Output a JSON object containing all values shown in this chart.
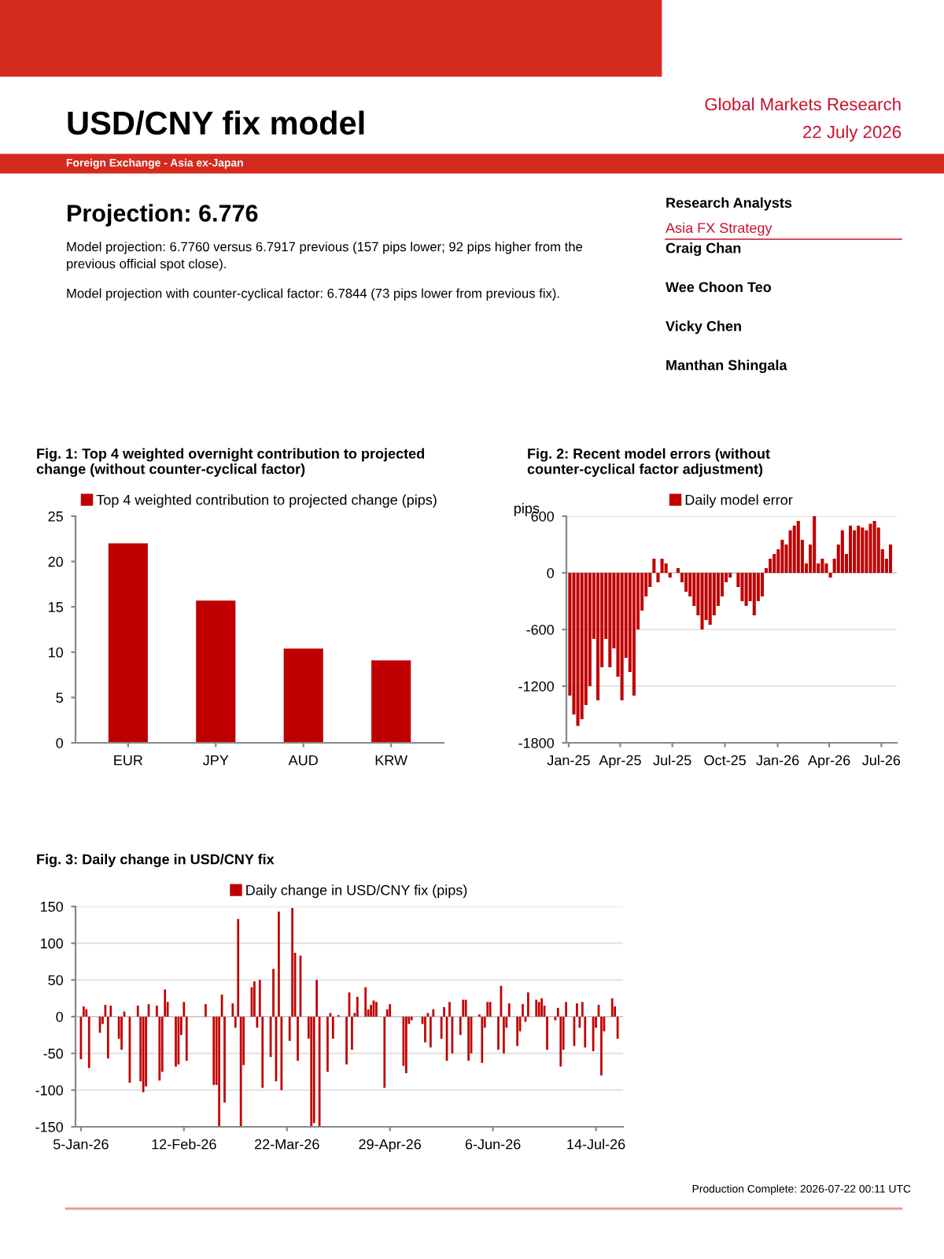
{
  "chart_data": [
    {
      "type": "other",
      "title": "USD/CNY fix model",
      "subtitle": "Foreign Exchange - Asia ex-Japan",
      "color": "#d52b1e",
      "annotations": [
        "Global Markets Research",
        "22 July 2026",
        "Projection: 6.776",
        "Model projection: 6.7760 versus 6.7917 previous (157 pips lower; 92 pips higher from the previous official spot close).",
        "Model projection with counter-cyclical factor: 6.7844 (73 pips lower from previous fix).",
        "Research Analysts",
        "Asia FX Strategy",
        "Craig Chan",
        "Wee Choon Teo",
        "Vicky Chen",
        "Manthan Shingala",
        "Production Complete: 2026-07-22 00:11 UTC"
      ]
    },
    {
      "type": "bar",
      "title": "Fig. 1: Top 4 weighted overnight contribution to projected change (without counter-cyclical factor)",
      "categories": [
        "EUR",
        "JPY",
        "AUD",
        "KRW"
      ],
      "series": [
        {
          "name": "Top 4 weighted contribution to projected change (pips)",
          "color": "#c00000",
          "values": [
            22,
            15.7,
            10.4,
            9.1
          ]
        }
      ],
      "ylim": [
        0,
        25
      ],
      "yticks": [
        0,
        5,
        10,
        15,
        20,
        25
      ],
      "grid": false,
      "legend": "top"
    },
    {
      "type": "bar",
      "title": "Fig. 2: Recent model errors (without counter-cyclical factor adjustment)",
      "ylabel": "pips",
      "x": [
        "2025-01-03",
        "2025-01-10",
        "2025-01-17",
        "2025-01-24",
        "2025-01-31",
        "2025-02-07",
        "2025-02-14",
        "2025-02-21",
        "2025-02-28",
        "2025-03-07",
        "2025-03-14",
        "2025-03-21",
        "2025-03-28",
        "2025-04-04",
        "2025-04-11",
        "2025-04-18",
        "2025-04-25",
        "2025-05-02",
        "2025-05-09",
        "2025-05-16",
        "2025-05-23",
        "2025-05-30",
        "2025-06-06",
        "2025-06-13",
        "2025-06-20",
        "2025-06-27",
        "2025-07-04",
        "2025-07-11",
        "2025-07-18",
        "2025-07-25",
        "2025-08-01",
        "2025-08-08",
        "2025-08-15",
        "2025-08-22",
        "2025-08-29",
        "2025-09-05",
        "2025-09-12",
        "2025-09-19",
        "2025-09-26",
        "2025-10-03",
        "2025-10-10",
        "2025-10-17",
        "2025-10-24",
        "2025-10-31",
        "2025-11-07",
        "2025-11-14",
        "2025-11-21",
        "2025-11-28",
        "2025-12-05",
        "2025-12-12",
        "2025-12-19",
        "2025-12-26",
        "2026-01-02",
        "2026-01-09",
        "2026-01-16",
        "2026-01-23",
        "2026-01-30",
        "2026-02-06",
        "2026-02-13",
        "2026-02-20",
        "2026-02-27",
        "2026-03-06",
        "2026-03-13",
        "2026-03-20",
        "2026-03-27",
        "2026-04-03",
        "2026-04-10",
        "2026-04-17",
        "2026-04-24",
        "2026-05-01",
        "2026-05-08",
        "2026-05-15",
        "2026-05-22",
        "2026-05-29",
        "2026-06-05",
        "2026-06-12",
        "2026-06-19",
        "2026-06-26",
        "2026-07-03",
        "2026-07-10",
        "2026-07-17"
      ],
      "series": [
        {
          "name": "Daily model error",
          "color": "#c00000",
          "values": [
            -1300,
            -1500,
            -1620,
            -1550,
            -1400,
            -1200,
            -700,
            -1350,
            -1000,
            -700,
            -1000,
            -800,
            -1100,
            -1350,
            -900,
            -1050,
            -1300,
            -600,
            -400,
            -250,
            -150,
            150,
            -100,
            150,
            100,
            -50,
            0,
            50,
            -100,
            -200,
            -250,
            -350,
            -450,
            -600,
            -500,
            -550,
            -450,
            -350,
            -250,
            -100,
            -50,
            0,
            -150,
            -300,
            -350,
            -300,
            -450,
            -300,
            -250,
            50,
            150,
            200,
            250,
            350,
            300,
            450,
            500,
            550,
            350,
            100,
            300,
            600,
            100,
            150,
            100,
            -50,
            150,
            300,
            450,
            200,
            500,
            450,
            500,
            480,
            450,
            520,
            550,
            480,
            250,
            150,
            300
          ]
        }
      ],
      "xlim": [
        "2024-12-28",
        "2026-07-28"
      ],
      "xticks": [
        {
          "value": "2025-01-01",
          "label": "Jan-25"
        },
        {
          "value": "2025-04-01",
          "label": "Apr-25"
        },
        {
          "value": "2025-07-01",
          "label": "Jul-25"
        },
        {
          "value": "2025-10-01",
          "label": "Oct-25"
        },
        {
          "value": "2026-01-01",
          "label": "Jan-26"
        },
        {
          "value": "2026-04-01",
          "label": "Apr-26"
        },
        {
          "value": "2026-07-01",
          "label": "Jul-26"
        }
      ],
      "ylim": [
        -1800,
        600
      ],
      "yticks": [
        -1800,
        -1200,
        -600,
        0,
        600
      ],
      "grid": "y",
      "legend": "top"
    },
    {
      "type": "bar",
      "title": "Fig. 3: Daily change in USD/CNY fix",
      "x": [
        "2026-01-05",
        "2026-01-06",
        "2026-01-07",
        "2026-01-08",
        "2026-01-12",
        "2026-01-13",
        "2026-01-14",
        "2026-01-15",
        "2026-01-16",
        "2026-01-19",
        "2026-01-20",
        "2026-01-21",
        "2026-01-23",
        "2026-01-26",
        "2026-01-27",
        "2026-01-28",
        "2026-01-29",
        "2026-01-30",
        "2026-02-02",
        "2026-02-03",
        "2026-02-04",
        "2026-02-05",
        "2026-02-06",
        "2026-02-09",
        "2026-02-10",
        "2026-02-11",
        "2026-02-12",
        "2026-02-13",
        "2026-02-20",
        "2026-02-23",
        "2026-02-24",
        "2026-02-25",
        "2026-02-26",
        "2026-02-27",
        "2026-03-02",
        "2026-03-03",
        "2026-03-04",
        "2026-03-05",
        "2026-03-06",
        "2026-03-09",
        "2026-03-10",
        "2026-03-11",
        "2026-03-12",
        "2026-03-13",
        "2026-03-16",
        "2026-03-17",
        "2026-03-18",
        "2026-03-19",
        "2026-03-20",
        "2026-03-23",
        "2026-03-24",
        "2026-03-25",
        "2026-03-26",
        "2026-03-27",
        "2026-03-30",
        "2026-03-31",
        "2026-04-01",
        "2026-04-02",
        "2026-04-03",
        "2026-04-06",
        "2026-04-07",
        "2026-04-08",
        "2026-04-10",
        "2026-04-13",
        "2026-04-14",
        "2026-04-15",
        "2026-04-16",
        "2026-04-17",
        "2026-04-20",
        "2026-04-21",
        "2026-04-22",
        "2026-04-23",
        "2026-04-24",
        "2026-04-27",
        "2026-04-28",
        "2026-04-29",
        "2026-05-04",
        "2026-05-05",
        "2026-05-06",
        "2026-05-07",
        "2026-05-11",
        "2026-05-12",
        "2026-05-13",
        "2026-05-14",
        "2026-05-15",
        "2026-05-18",
        "2026-05-19",
        "2026-05-20",
        "2026-05-21",
        "2026-05-22",
        "2026-05-25",
        "2026-05-26",
        "2026-05-27",
        "2026-05-28",
        "2026-05-29",
        "2026-06-01",
        "2026-06-02",
        "2026-06-03",
        "2026-06-04",
        "2026-06-05",
        "2026-06-08",
        "2026-06-09",
        "2026-06-10",
        "2026-06-11",
        "2026-06-12",
        "2026-06-15",
        "2026-06-16",
        "2026-06-17",
        "2026-06-18",
        "2026-06-19",
        "2026-06-22",
        "2026-06-23",
        "2026-06-24",
        "2026-06-25",
        "2026-06-26",
        "2026-06-29",
        "2026-06-30",
        "2026-07-01",
        "2026-07-02",
        "2026-07-03",
        "2026-07-06",
        "2026-07-07",
        "2026-07-08",
        "2026-07-09",
        "2026-07-10",
        "2026-07-13",
        "2026-07-14",
        "2026-07-15",
        "2026-07-16",
        "2026-07-17",
        "2026-07-20",
        "2026-07-21",
        "2026-07-22"
      ],
      "series": [
        {
          "name": "Daily change in USD/CNY fix (pips)",
          "color": "#c00000",
          "values": [
            -58,
            14,
            10,
            -70,
            -22,
            -10,
            16,
            -57,
            15,
            -30,
            -45,
            7,
            -90,
            15,
            -88,
            -103,
            -95,
            17,
            15,
            -87,
            -75,
            37,
            20,
            -68,
            -65,
            -25,
            20,
            -60,
            17,
            -93,
            -93,
            -150,
            30,
            -117,
            18,
            -15,
            133,
            -150,
            -66,
            40,
            48,
            -15,
            50,
            -97,
            -55,
            65,
            -88,
            143,
            -100,
            -33,
            148,
            87,
            -60,
            83,
            -30,
            -150,
            -145,
            50,
            -150,
            -75,
            5,
            -30,
            2,
            -65,
            33,
            -45,
            5,
            27,
            40,
            10,
            16,
            22,
            20,
            -97,
            10,
            17,
            -67,
            -77,
            -10,
            -5,
            -10,
            -35,
            5,
            -42,
            10,
            -30,
            13,
            -60,
            20,
            -50,
            -25,
            23,
            23,
            -60,
            -50,
            3,
            -63,
            -15,
            20,
            20,
            -45,
            42,
            -50,
            -15,
            18,
            -40,
            -20,
            17,
            -7,
            33,
            23,
            20,
            25,
            15,
            -45,
            -5,
            12,
            -68,
            -45,
            20,
            -40,
            18,
            -15,
            20,
            -42,
            -47,
            -15,
            16,
            -80,
            -20,
            25,
            14,
            -30
          ]
        }
      ],
      "xlim": [
        "2026-01-03",
        "2026-07-24"
      ],
      "xticks": [
        {
          "value": "2026-01-05",
          "label": "5-Jan-26"
        },
        {
          "value": "2026-02-12",
          "label": "12-Feb-26"
        },
        {
          "value": "2026-03-22",
          "label": "22-Mar-26"
        },
        {
          "value": "2026-04-29",
          "label": "29-Apr-26"
        },
        {
          "value": "2026-06-06",
          "label": "6-Jun-26"
        },
        {
          "value": "2026-07-14",
          "label": "14-Jul-26"
        }
      ],
      "ylim": [
        -150,
        150
      ],
      "yticks": [
        -150,
        -100,
        -50,
        0,
        50,
        100,
        150
      ],
      "grid": "y",
      "legend": "top"
    }
  ]
}
